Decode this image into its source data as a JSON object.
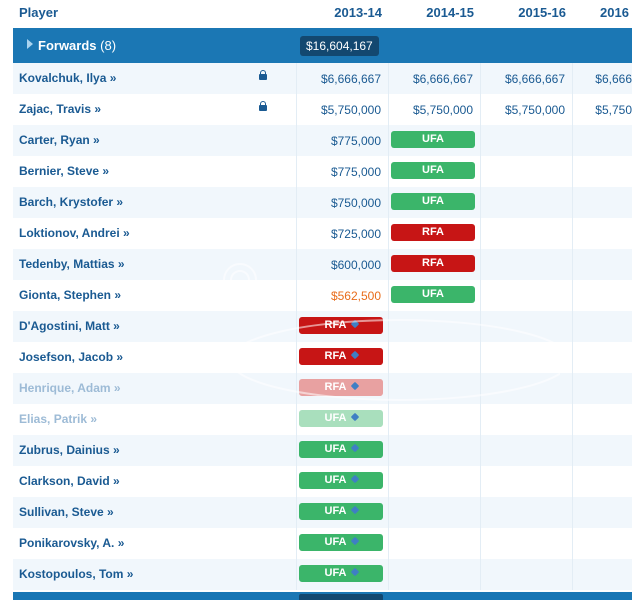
{
  "header": {
    "player_label": "Player",
    "years": [
      "2013-14",
      "2014-15",
      "2015-16",
      "2016"
    ]
  },
  "group": {
    "title": "Forwards",
    "count": "(8)",
    "total": "$16,604,167"
  },
  "icons": {
    "chevron": "chevron-right-icon",
    "lock": "lock-icon",
    "tag": "tag-icon"
  },
  "colors": {
    "header_blue": "#1b77b4",
    "dark_blue": "#134870",
    "link_blue": "#1a5a92",
    "ufa_green": "#3bb56a",
    "rfa_red": "#c71515",
    "orange_value": "#e86c1a"
  },
  "rows": [
    {
      "name": "Kovalchuk, Ilya »",
      "lock": true,
      "cells": [
        {
          "type": "value",
          "text": "$6,666,667"
        },
        {
          "type": "value",
          "text": "$6,666,667"
        },
        {
          "type": "value",
          "text": "$6,666,667"
        },
        {
          "type": "value",
          "text": "$6,666"
        }
      ]
    },
    {
      "name": "Zajac, Travis »",
      "lock": true,
      "cells": [
        {
          "type": "value",
          "text": "$5,750,000"
        },
        {
          "type": "value",
          "text": "$5,750,000"
        },
        {
          "type": "value",
          "text": "$5,750,000"
        },
        {
          "type": "value",
          "text": "$5,750"
        }
      ]
    },
    {
      "name": "Carter, Ryan »",
      "cells": [
        {
          "type": "value",
          "text": "$775,000"
        },
        {
          "type": "pill",
          "kind": "ufa",
          "text": "UFA"
        }
      ]
    },
    {
      "name": "Bernier, Steve »",
      "cells": [
        {
          "type": "value",
          "text": "$775,000"
        },
        {
          "type": "pill",
          "kind": "ufa",
          "text": "UFA"
        }
      ]
    },
    {
      "name": "Barch, Krystofer »",
      "cells": [
        {
          "type": "value",
          "text": "$750,000"
        },
        {
          "type": "pill",
          "kind": "ufa",
          "text": "UFA"
        }
      ]
    },
    {
      "name": "Loktionov, Andrei »",
      "cells": [
        {
          "type": "value",
          "text": "$725,000"
        },
        {
          "type": "pill",
          "kind": "rfa",
          "text": "RFA"
        }
      ]
    },
    {
      "name": "Tedenby, Mattias »",
      "cells": [
        {
          "type": "value",
          "text": "$600,000"
        },
        {
          "type": "pill",
          "kind": "rfa",
          "text": "RFA"
        }
      ]
    },
    {
      "name": "Gionta, Stephen »",
      "cells": [
        {
          "type": "value",
          "text": "$562,500",
          "orange": true
        },
        {
          "type": "pill",
          "kind": "ufa",
          "text": "UFA"
        }
      ]
    },
    {
      "name": "D'Agostini, Matt »",
      "cells": [
        {
          "type": "pill",
          "kind": "rfa",
          "text": "RFA",
          "tag": true
        }
      ]
    },
    {
      "name": "Josefson, Jacob »",
      "cells": [
        {
          "type": "pill",
          "kind": "rfa",
          "text": "RFA",
          "tag": true
        }
      ]
    },
    {
      "name": "Henrique, Adam »",
      "faded": true,
      "cells": [
        {
          "type": "pill",
          "kind": "fade-rfa",
          "text": "RFA",
          "tag": true
        }
      ]
    },
    {
      "name": "Elias, Patrik »",
      "faded": true,
      "cells": [
        {
          "type": "pill",
          "kind": "fade-ufa",
          "text": "UFA",
          "tag": true
        }
      ]
    },
    {
      "name": "Zubrus, Dainius »",
      "cells": [
        {
          "type": "pill",
          "kind": "ufa",
          "text": "UFA",
          "tag": true
        }
      ]
    },
    {
      "name": "Clarkson, David »",
      "cells": [
        {
          "type": "pill",
          "kind": "ufa",
          "text": "UFA",
          "tag": true
        }
      ]
    },
    {
      "name": "Sullivan, Steve »",
      "cells": [
        {
          "type": "pill",
          "kind": "ufa",
          "text": "UFA",
          "tag": true
        }
      ]
    },
    {
      "name": "Ponikarovsky, A. »",
      "cells": [
        {
          "type": "pill",
          "kind": "ufa",
          "text": "UFA",
          "tag": true
        }
      ]
    },
    {
      "name": "Kostopoulos, Tom »",
      "cells": [
        {
          "type": "pill",
          "kind": "ufa",
          "text": "UFA",
          "tag": true
        }
      ]
    }
  ]
}
